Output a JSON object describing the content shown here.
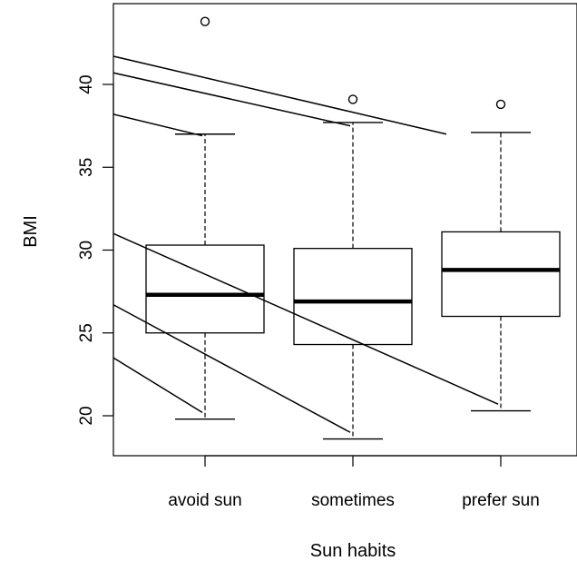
{
  "chart_data": {
    "type": "box",
    "title": "",
    "xlabel": "Sun habits",
    "ylabel": "BMI",
    "categories": [
      "avoid sun",
      "sometimes",
      "prefer sun"
    ],
    "ylim": [
      17,
      45.5
    ],
    "yticks": [
      20,
      25,
      30,
      35,
      40
    ],
    "grid": false,
    "boxes": [
      {
        "name": "avoid sun",
        "whisker_low": 19.8,
        "q1": 25.0,
        "median": 27.3,
        "q3": 30.3,
        "whisker_high": 37.0,
        "outliers": [
          43.8
        ]
      },
      {
        "name": "sometimes",
        "whisker_low": 18.6,
        "q1": 24.3,
        "median": 26.9,
        "q3": 30.1,
        "whisker_high": 37.7,
        "outliers": [
          39.1
        ]
      },
      {
        "name": "prefer sun",
        "whisker_low": 20.3,
        "q1": 26.0,
        "median": 28.8,
        "q3": 31.1,
        "whisker_high": 37.1,
        "outliers": [
          38.8
        ]
      }
    ],
    "overlay_lines": [
      {
        "x": [
          0.0,
          2.65
        ],
        "y": [
          41.7,
          37.0
        ]
      },
      {
        "x": [
          0.0,
          2.0
        ],
        "y": [
          40.7,
          37.5
        ]
      },
      {
        "x": [
          0.0,
          1.0
        ],
        "y": [
          38.2,
          36.9
        ]
      },
      {
        "x": [
          0.0,
          3.0
        ],
        "y": [
          31.0,
          20.7
        ]
      },
      {
        "x": [
          0.0,
          2.0
        ],
        "y": [
          26.7,
          19.0
        ]
      },
      {
        "x": [
          0.0,
          1.0
        ],
        "y": [
          23.5,
          20.2
        ]
      }
    ]
  }
}
